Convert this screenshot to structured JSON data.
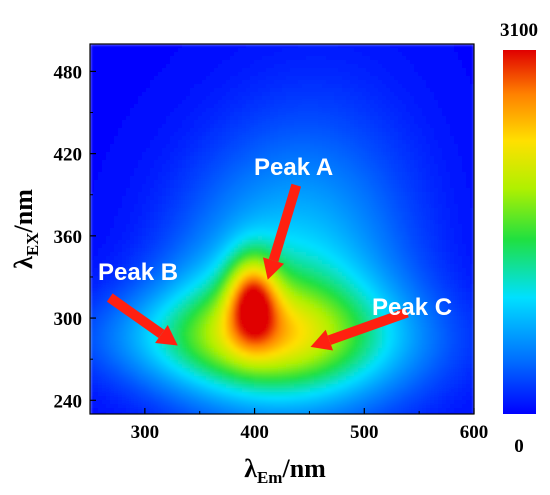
{
  "chart_data": {
    "type": "heatmap",
    "title": "",
    "xlabel": {
      "symbol": "λ",
      "sub": "Em",
      "unit": "/nm"
    },
    "ylabel": {
      "symbol": "λ",
      "sub": "EX",
      "unit": "/nm"
    },
    "xlim": [
      250,
      600
    ],
    "ylim": [
      230,
      500
    ],
    "xticks": [
      300,
      400,
      500,
      600
    ],
    "yticks": [
      240,
      300,
      360,
      420,
      480
    ],
    "xtick_labels": [
      "300",
      "400",
      "500",
      "600"
    ],
    "ytick_labels": [
      "240",
      "300",
      "360",
      "420",
      "480"
    ],
    "colorbar": {
      "min": 0,
      "max": 3100,
      "min_label": "0",
      "max_label": "3100",
      "colormap": "jet"
    },
    "intensity_components": [
      {
        "em": 398,
        "ex": 315,
        "amplitude": 1500,
        "sigma_em": 16,
        "sigma_ex": 22
      },
      {
        "em": 405,
        "ex": 290,
        "amplitude": 1000,
        "sigma_em": 70,
        "sigma_ex": 30
      },
      {
        "em": 420,
        "ex": 320,
        "amplitude": 750,
        "sigma_em": 70,
        "sigma_ex": 70
      },
      {
        "em": 445,
        "ex": 280,
        "amplitude": 420,
        "sigma_em": 100,
        "sigma_ex": 30
      },
      {
        "em": 360,
        "ex": 285,
        "amplitude": 300,
        "sigma_em": 95,
        "sigma_ex": 22
      },
      {
        "em": 470,
        "ex": 360,
        "amplitude": 280,
        "sigma_em": 70,
        "sigma_ex": 90
      }
    ],
    "annotations": [
      {
        "label": "Peak A",
        "arrow_tail": [
          438,
          397
        ],
        "arrow_head": [
          412,
          328
        ]
      },
      {
        "label": "Peak B",
        "arrow_tail": [
          268,
          315
        ],
        "arrow_head": [
          330,
          280
        ]
      },
      {
        "label": "Peak C",
        "arrow_tail": [
          539,
          304
        ],
        "arrow_head": [
          451,
          279
        ]
      }
    ]
  },
  "colors": {
    "arrow": "#ff2010",
    "annotation_text": "#ffffff",
    "background_low": "#0000ff"
  }
}
